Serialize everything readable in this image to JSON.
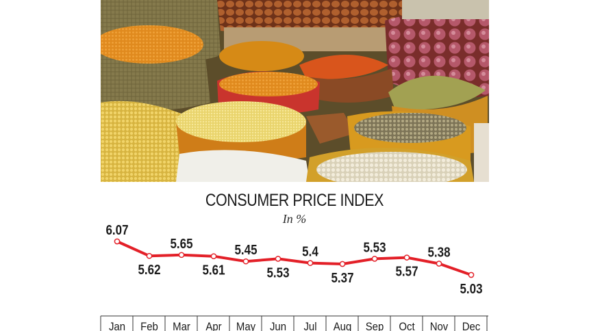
{
  "chart_data": {
    "type": "line",
    "title": "CONSUMER PRICE INDEX",
    "subtitle": "In %",
    "categories": [
      "Jan",
      "Feb",
      "Mar",
      "Apr",
      "May",
      "Jun",
      "Jul",
      "Aug",
      "Sep",
      "Oct",
      "Nov",
      "Dec"
    ],
    "values": [
      6.07,
      5.62,
      5.65,
      5.61,
      5.45,
      5.53,
      5.4,
      5.37,
      5.53,
      5.57,
      5.38,
      5.03
    ],
    "value_labels": [
      "6.07",
      "5.62",
      "5.65",
      "5.61",
      "5.45",
      "5.53",
      "5.4",
      "5.37",
      "5.53",
      "5.57",
      "5.38",
      "5.03"
    ],
    "label_side": [
      "above",
      "below",
      "above",
      "below",
      "above",
      "below",
      "above",
      "below",
      "above",
      "below",
      "above",
      "below"
    ],
    "line_color": "#e32028",
    "marker_color": "#ffffff",
    "grid": false,
    "legend": "none"
  },
  "colors": {
    "line": "#e32028",
    "text": "#1b1b1b",
    "axis": "#333333"
  }
}
